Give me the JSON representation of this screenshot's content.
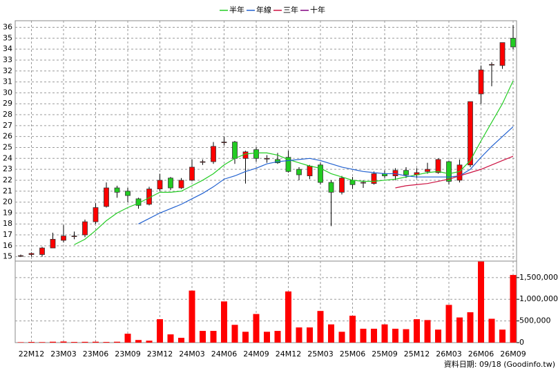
{
  "chart_data": [
    {
      "type": "candlestick",
      "categories": [
        null,
        "22M12",
        null,
        null,
        "23M03",
        null,
        null,
        "23M06",
        null,
        null,
        "23M09",
        null,
        null,
        "23M12",
        null,
        null,
        "24M03",
        null,
        null,
        "24M06",
        null,
        null,
        "24M09",
        null,
        null,
        "24M12",
        null,
        null,
        "25M03",
        null,
        null,
        "25M06",
        null,
        null,
        "25M09",
        null,
        null,
        "25M12",
        null,
        null,
        "26M03",
        null,
        null,
        "26M06",
        null,
        null,
        "26M09"
      ],
      "open": [
        15.1,
        15.2,
        15.2,
        15.8,
        16.5,
        16.9,
        17.0,
        18.2,
        19.6,
        21.3,
        21.0,
        20.3,
        19.8,
        21.2,
        22.2,
        21.3,
        22.0,
        23.7,
        23.7,
        25.5,
        25.5,
        24.0,
        24.8,
        24.0,
        23.9,
        24.1,
        23.0,
        22.4,
        23.4,
        21.8,
        20.9,
        22.0,
        21.8,
        21.7,
        22.6,
        22.4,
        22.9,
        22.5,
        22.8,
        22.7,
        23.7,
        22.0,
        23.4,
        29.9,
        32.6,
        32.5,
        35.0
      ],
      "high": [
        15.2,
        15.4,
        15.9,
        17.2,
        17.9,
        17.3,
        18.4,
        19.9,
        21.8,
        21.5,
        21.3,
        20.4,
        21.4,
        22.6,
        22.3,
        22.2,
        23.9,
        23.9,
        25.5,
        26.0,
        25.6,
        24.7,
        25.0,
        24.3,
        24.5,
        24.7,
        23.2,
        23.4,
        23.6,
        22.0,
        22.4,
        22.3,
        22.0,
        22.8,
        22.9,
        23.1,
        23.2,
        23.1,
        23.6,
        24.0,
        23.8,
        23.9,
        29.2,
        32.5,
        32.8,
        34.6,
        36.2
      ],
      "low": [
        15.0,
        15.0,
        15.0,
        15.8,
        16.3,
        16.6,
        16.8,
        18.0,
        19.5,
        20.4,
        20.0,
        19.4,
        19.7,
        21.0,
        21.1,
        21.2,
        21.9,
        23.4,
        23.5,
        25.2,
        23.5,
        21.7,
        23.7,
        23.6,
        23.5,
        22.7,
        22.0,
        22.1,
        21.6,
        17.8,
        20.7,
        21.2,
        21.3,
        21.6,
        22.2,
        22.0,
        22.2,
        22.2,
        22.6,
        22.6,
        21.6,
        21.8,
        23.2,
        29.0,
        30.6,
        32.2,
        34.0
      ],
      "close": [
        15.1,
        15.3,
        15.8,
        16.6,
        16.9,
        16.9,
        18.2,
        19.5,
        21.3,
        20.9,
        20.6,
        19.7,
        21.2,
        22.0,
        21.3,
        22.0,
        23.2,
        23.7,
        25.1,
        25.5,
        24.0,
        24.6,
        24.0,
        24.0,
        23.6,
        22.8,
        22.5,
        23.3,
        21.8,
        20.9,
        22.2,
        21.6,
        21.8,
        22.6,
        22.4,
        22.9,
        22.5,
        22.7,
        23.0,
        23.9,
        21.9,
        23.4,
        29.2,
        32.1,
        32.6,
        34.6,
        34.2
      ],
      "up_color": "#ff0000",
      "down_color": "#22cc22",
      "series": [
        {
          "name": "半年",
          "color": "#22cc22",
          "values": [
            null,
            null,
            null,
            null,
            null,
            16.1,
            16.6,
            17.4,
            18.3,
            19.0,
            19.5,
            19.9,
            20.4,
            20.9,
            20.9,
            21.0,
            21.5,
            22.0,
            22.6,
            23.4,
            24.0,
            24.4,
            24.5,
            24.5,
            24.3,
            23.9,
            23.6,
            23.3,
            23.1,
            22.6,
            22.3,
            22.0,
            21.9,
            21.9,
            22.0,
            22.1,
            22.3,
            22.5,
            22.7,
            22.8,
            22.6,
            22.8,
            23.8,
            25.6,
            27.3,
            29.0,
            31.1
          ]
        },
        {
          "name": "年線",
          "color": "#2060d0",
          "values": [
            null,
            null,
            null,
            null,
            null,
            null,
            null,
            null,
            null,
            null,
            null,
            18.0,
            18.5,
            19.0,
            19.4,
            19.8,
            20.3,
            20.8,
            21.4,
            22.1,
            22.4,
            22.8,
            23.1,
            23.5,
            23.7,
            23.8,
            23.9,
            24.0,
            23.8,
            23.5,
            23.2,
            23.0,
            22.8,
            22.7,
            22.6,
            22.6,
            22.4,
            22.3,
            22.3,
            22.3,
            22.3,
            22.4,
            23.0,
            24.1,
            25.1,
            26.0,
            26.9
          ]
        },
        {
          "name": "三年",
          "color": "#cc1040",
          "values": [
            null,
            null,
            null,
            null,
            null,
            null,
            null,
            null,
            null,
            null,
            null,
            null,
            null,
            null,
            null,
            null,
            null,
            null,
            null,
            null,
            null,
            null,
            null,
            null,
            null,
            null,
            null,
            null,
            null,
            null,
            null,
            null,
            null,
            null,
            null,
            21.3,
            21.5,
            21.6,
            21.7,
            21.9,
            22.1,
            22.4,
            22.7,
            23.0,
            23.4,
            23.8,
            24.2
          ]
        },
        {
          "name": "十年",
          "color": "#800080",
          "values": [
            null,
            null,
            null,
            null,
            null,
            null,
            null,
            null,
            null,
            null,
            null,
            null,
            null,
            null,
            null,
            null,
            null,
            null,
            null,
            null,
            null,
            null,
            null,
            null,
            null,
            null,
            null,
            null,
            null,
            null,
            null,
            null,
            null,
            null,
            null,
            null,
            null,
            null,
            null,
            null,
            null,
            null,
            null,
            null,
            null,
            null,
            null
          ]
        }
      ],
      "ylim": [
        14.6,
        36.6
      ],
      "yticks": [
        15,
        16,
        17,
        18,
        19,
        20,
        21,
        22,
        23,
        24,
        25,
        26,
        27,
        28,
        29,
        30,
        31,
        32,
        33,
        34,
        35,
        36
      ],
      "grid": true
    },
    {
      "type": "bar",
      "values": [
        10000,
        15000,
        12000,
        20000,
        25000,
        15000,
        18000,
        20000,
        15000,
        20000,
        205000,
        60000,
        45000,
        540000,
        190000,
        110000,
        1200000,
        270000,
        270000,
        950000,
        410000,
        250000,
        660000,
        250000,
        270000,
        1180000,
        350000,
        350000,
        730000,
        420000,
        250000,
        620000,
        320000,
        320000,
        420000,
        320000,
        310000,
        540000,
        520000,
        300000,
        870000,
        580000,
        700000,
        1870000,
        550000,
        300000,
        1560000
      ],
      "color": "#ff0000",
      "ylim": [
        0,
        1880000
      ],
      "yticks": [
        0,
        {
          "value": 500000,
          "label": "500,000"
        },
        {
          "value": 1000000,
          "label": "1,000,000"
        },
        {
          "value": 1500000,
          "label": "1,500,000"
        }
      ],
      "grid": true
    }
  ],
  "footnote": "資料日期: 09/18 (Goodinfo.tw)"
}
